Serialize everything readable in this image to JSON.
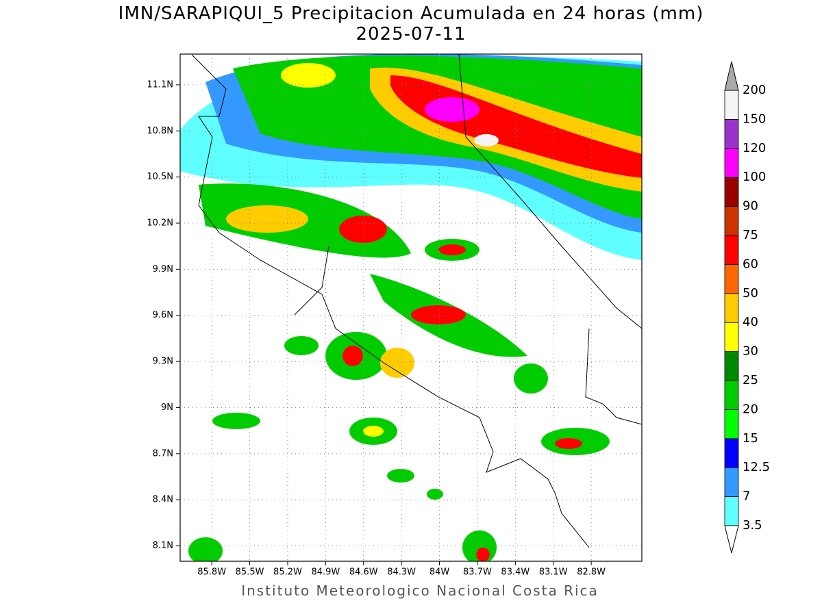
{
  "map": {
    "title": "IMN/SARAPIQUI_5 Precipitacion Acumulada en 24 horas (mm)",
    "subtitle": "2025-07-11",
    "xlim": [
      -86.05,
      -82.4
    ],
    "ylim": [
      8.0,
      11.3
    ],
    "lat_ticks": [
      {
        "value": 11.1,
        "label": "11.1N"
      },
      {
        "value": 10.8,
        "label": "10.8N"
      },
      {
        "value": 10.5,
        "label": "10.5N"
      },
      {
        "value": 10.2,
        "label": "10.2N"
      },
      {
        "value": 9.9,
        "label": "9.9N"
      },
      {
        "value": 9.6,
        "label": "9.6N"
      },
      {
        "value": 9.3,
        "label": "9.3N"
      },
      {
        "value": 9.0,
        "label": "9N"
      },
      {
        "value": 8.7,
        "label": "8.7N"
      },
      {
        "value": 8.4,
        "label": "8.4N"
      },
      {
        "value": 8.1,
        "label": "8.1N"
      }
    ],
    "lon_ticks": [
      {
        "value": -85.8,
        "label": "85.8W"
      },
      {
        "value": -85.5,
        "label": "85.5W"
      },
      {
        "value": -85.2,
        "label": "85.2W"
      },
      {
        "value": -84.9,
        "label": "84.9W"
      },
      {
        "value": -84.6,
        "label": "84.6W"
      },
      {
        "value": -84.3,
        "label": "84.3W"
      },
      {
        "value": -84.0,
        "label": "84W"
      },
      {
        "value": -83.7,
        "label": "83.7W"
      },
      {
        "value": -83.4,
        "label": "83.4W"
      },
      {
        "value": -83.1,
        "label": "83.1W"
      },
      {
        "value": -82.8,
        "label": "82.8W"
      }
    ],
    "grid": true
  },
  "colorbar": {
    "levels": [
      3.5,
      7,
      12.5,
      15,
      20,
      25,
      30,
      40,
      50,
      60,
      75,
      90,
      100,
      120,
      150,
      200
    ],
    "colors": [
      "#5fffff",
      "#3399ff",
      "#0000ff",
      "#00ff00",
      "#00cc00",
      "#008800",
      "#ffff00",
      "#ffcc00",
      "#ff6600",
      "#ff0000",
      "#cc3300",
      "#990000",
      "#ff00ff",
      "#9933cc",
      "#f4f4f4"
    ],
    "under_color": "#ffffff",
    "over_color": "#aaaaaa"
  },
  "footer": "Instituto Meteorologico Nacional Costa Rica"
}
